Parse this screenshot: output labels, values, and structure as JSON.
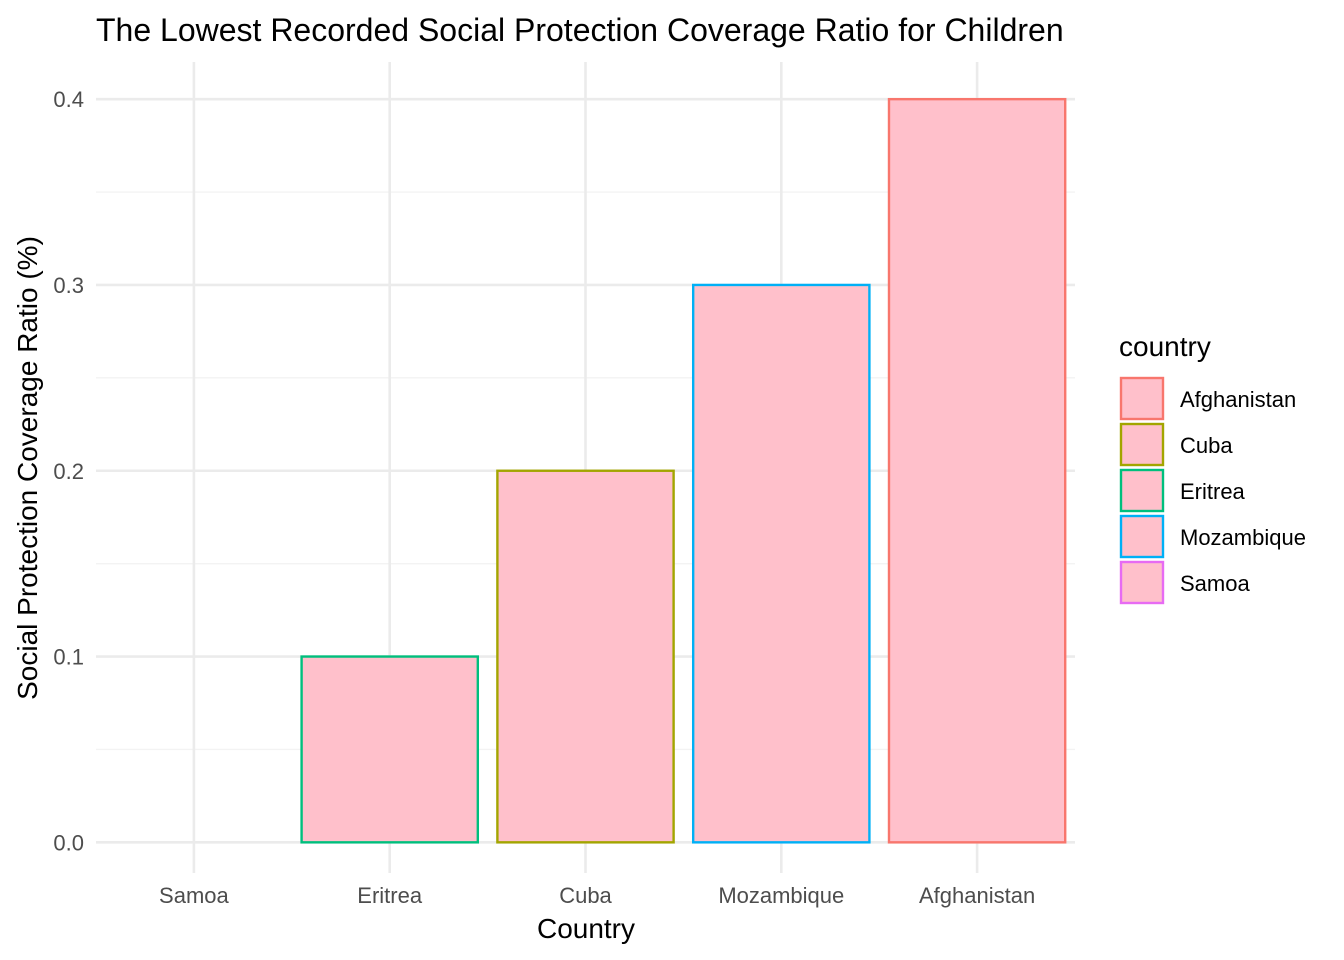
{
  "chart_data": {
    "type": "bar",
    "title": "The Lowest Recorded Social Protection Coverage Ratio for Children",
    "xlabel": "Country",
    "ylabel": "Social Protection Coverage Ratio (%)",
    "categories": [
      "Samoa",
      "Eritrea",
      "Cuba",
      "Mozambique",
      "Afghanistan"
    ],
    "values": [
      0.0,
      0.1,
      0.2,
      0.3,
      0.4
    ],
    "ylim": [
      -0.0165,
      0.42
    ],
    "yticks": [
      "0.0",
      "0.1",
      "0.2",
      "0.3",
      "0.4"
    ],
    "grid": true,
    "bar_fill": "#FFC0CB",
    "border_colors": {
      "Afghanistan": "#F8766D",
      "Cuba": "#A3A500",
      "Eritrea": "#00BF7D",
      "Mozambique": "#00B0F6",
      "Samoa": "#E76BF3"
    },
    "legend": {
      "title": "country",
      "position": "right",
      "entries": [
        "Afghanistan",
        "Cuba",
        "Eritrea",
        "Mozambique",
        "Samoa"
      ]
    }
  }
}
